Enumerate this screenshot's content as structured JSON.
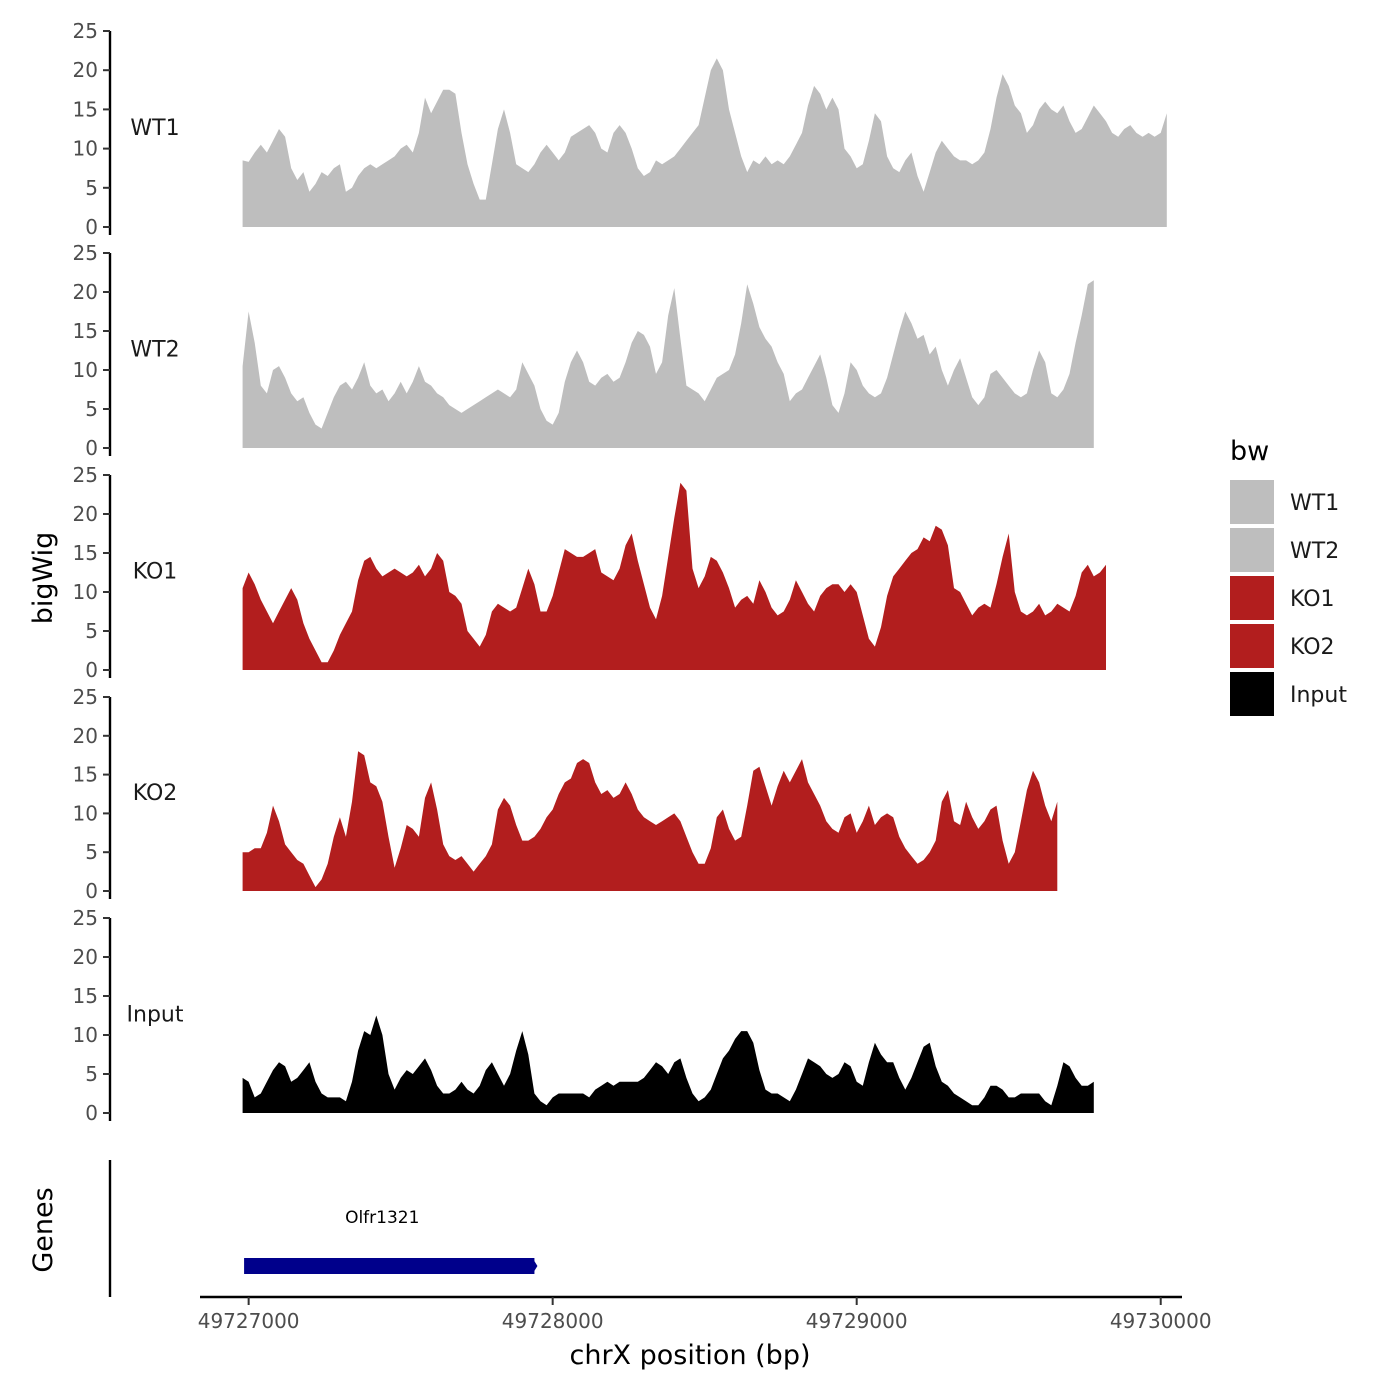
{
  "colors": {
    "WT": "#bebebe",
    "KO": "#b21e1e",
    "Input": "#000000",
    "gene": "#00008b",
    "axis": "#000000"
  },
  "chart_data": {
    "type": "area",
    "title": "",
    "ylabel": "bigWig",
    "xlabel": "chrX position (bp)",
    "ylim": [
      0,
      25
    ],
    "y_ticks": [
      "0",
      "5",
      "10",
      "15",
      "20",
      "25"
    ],
    "x_range": [
      49726840,
      49730070
    ],
    "x_ticks": [
      49727000,
      49728000,
      49729000,
      49730000
    ],
    "x_tick_labels": [
      "49727000",
      "49728000",
      "49729000",
      "49730000"
    ],
    "x_start": 49726980,
    "x_step": 20,
    "legend": {
      "title": "bw",
      "position": "right",
      "entries": [
        {
          "label": "WT1",
          "color": "#bebebe"
        },
        {
          "label": "WT2",
          "color": "#bebebe"
        },
        {
          "label": "KO1",
          "color": "#b21e1e"
        },
        {
          "label": "KO2",
          "color": "#b21e1e"
        },
        {
          "label": "Input",
          "color": "#000000"
        }
      ]
    },
    "tracks": [
      {
        "name": "WT1",
        "color": "#bebebe",
        "values": [
          8.5,
          8.3,
          9.5,
          10.5,
          9.5,
          11.0,
          12.5,
          11.5,
          7.5,
          6.0,
          7.0,
          4.5,
          5.5,
          7.0,
          6.5,
          7.5,
          8.0,
          4.5,
          5.0,
          6.5,
          7.5,
          8.0,
          7.5,
          8.0,
          8.5,
          9.0,
          10.0,
          10.5,
          9.5,
          12.0,
          16.5,
          14.5,
          16.0,
          17.5,
          17.5,
          17.0,
          12.0,
          8.0,
          5.5,
          3.5,
          3.5,
          8.0,
          12.5,
          15.0,
          12.0,
          8.0,
          7.5,
          7.0,
          8.0,
          9.5,
          10.5,
          9.5,
          8.5,
          9.5,
          11.5,
          12.0,
          12.5,
          13.0,
          12.0,
          10.0,
          9.5,
          12.0,
          13.0,
          12.0,
          10.0,
          7.5,
          6.5,
          7.0,
          8.5,
          8.0,
          8.5,
          9.0,
          10.0,
          11.0,
          12.0,
          13.0,
          16.5,
          20.0,
          21.5,
          20.0,
          15.0,
          12.0,
          9.0,
          7.0,
          8.5,
          8.0,
          9.0,
          8.0,
          8.5,
          8.0,
          9.0,
          10.5,
          12.0,
          15.5,
          18.0,
          17.0,
          15.0,
          16.5,
          15.0,
          10.0,
          9.0,
          7.5,
          8.0,
          11.0,
          14.5,
          13.5,
          9.0,
          7.5,
          7.0,
          8.5,
          9.5,
          6.5,
          4.5,
          7.0,
          9.5,
          11.0,
          10.0,
          9.0,
          8.5,
          8.5,
          8.0,
          8.5,
          9.5,
          12.5,
          16.5,
          19.5,
          18.0,
          15.5,
          14.5,
          12.0,
          13.0,
          15.0,
          16.0,
          15.0,
          14.5,
          15.5,
          13.5,
          12.0,
          12.5,
          14.0,
          15.5,
          14.5,
          13.5,
          12.0,
          11.5,
          12.5,
          13.0,
          12.0,
          11.5,
          12.0,
          11.5,
          12.0,
          14.5
        ]
      },
      {
        "name": "WT2",
        "color": "#bebebe",
        "values": [
          10.5,
          17.5,
          13.5,
          8.0,
          7.0,
          10.0,
          10.5,
          9.0,
          7.0,
          6.0,
          6.5,
          4.5,
          3.0,
          2.5,
          4.5,
          6.5,
          8.0,
          8.5,
          7.5,
          9.0,
          11.0,
          8.0,
          7.0,
          7.5,
          6.0,
          7.0,
          8.5,
          7.0,
          8.5,
          10.5,
          8.5,
          8.0,
          7.0,
          6.5,
          5.5,
          5.0,
          4.5,
          5.0,
          5.5,
          6.0,
          6.5,
          7.0,
          7.5,
          7.0,
          6.5,
          7.5,
          11.0,
          9.5,
          8.0,
          5.0,
          3.5,
          3.0,
          4.5,
          8.5,
          11.0,
          12.5,
          11.0,
          8.5,
          8.0,
          9.0,
          9.5,
          8.5,
          9.0,
          11.0,
          13.5,
          15.0,
          14.5,
          13.0,
          9.5,
          11.0,
          17.0,
          20.5,
          14.0,
          8.0,
          7.5,
          7.0,
          6.0,
          7.5,
          9.0,
          9.5,
          10.0,
          12.0,
          16.0,
          21.0,
          18.5,
          15.5,
          14.0,
          13.0,
          11.0,
          9.5,
          6.0,
          7.0,
          7.5,
          9.0,
          10.5,
          12.0,
          9.0,
          5.5,
          4.5,
          7.0,
          11.0,
          10.0,
          8.0,
          7.0,
          6.5,
          7.0,
          9.0,
          12.0,
          15.0,
          17.5,
          16.0,
          14.0,
          14.5,
          12.0,
          13.0,
          10.0,
          8.0,
          10.0,
          11.5,
          9.0,
          6.5,
          5.5,
          6.5,
          9.5,
          10.0,
          9.0,
          8.0,
          7.0,
          6.5,
          7.0,
          10.0,
          12.5,
          11.0,
          7.0,
          6.5,
          7.5,
          9.5,
          13.5,
          17.0,
          21.0,
          21.5
        ]
      },
      {
        "name": "KO1",
        "color": "#b21e1e",
        "values": [
          10.5,
          12.5,
          11.0,
          9.0,
          7.5,
          6.0,
          7.5,
          9.0,
          10.5,
          9.0,
          6.0,
          4.0,
          2.5,
          1.0,
          1.0,
          2.5,
          4.5,
          6.0,
          7.5,
          11.5,
          14.0,
          14.5,
          13.0,
          12.0,
          12.5,
          13.0,
          12.5,
          12.0,
          12.5,
          13.5,
          12.0,
          13.0,
          15.0,
          14.0,
          10.0,
          9.5,
          8.5,
          5.0,
          4.0,
          3.0,
          4.5,
          7.5,
          8.5,
          8.0,
          7.5,
          8.0,
          10.5,
          13.0,
          11.0,
          7.5,
          7.5,
          9.5,
          12.5,
          15.5,
          15.0,
          14.5,
          14.5,
          15.0,
          15.5,
          12.5,
          12.0,
          11.5,
          13.0,
          16.0,
          17.5,
          14.0,
          11.0,
          8.0,
          6.5,
          9.5,
          14.5,
          19.5,
          24.0,
          23.0,
          13.0,
          10.5,
          12.0,
          14.5,
          14.0,
          12.5,
          10.5,
          8.0,
          9.0,
          9.5,
          8.5,
          11.5,
          10.0,
          8.0,
          7.0,
          7.5,
          9.0,
          11.5,
          10.0,
          8.5,
          7.5,
          9.5,
          10.5,
          11.0,
          11.0,
          10.0,
          11.0,
          10.0,
          7.0,
          4.0,
          3.0,
          5.5,
          9.5,
          12.0,
          13.0,
          14.0,
          15.0,
          15.5,
          17.0,
          16.5,
          18.5,
          18.0,
          16.0,
          10.5,
          10.0,
          8.5,
          7.0,
          8.0,
          8.5,
          8.0,
          11.0,
          14.5,
          17.5,
          10.0,
          7.5,
          7.0,
          7.5,
          8.5,
          7.0,
          7.5,
          8.5,
          8.0,
          7.5,
          9.5,
          12.5,
          13.5,
          12.0,
          12.5,
          13.5
        ]
      },
      {
        "name": "KO2",
        "color": "#b21e1e",
        "values": [
          5.0,
          5.0,
          5.5,
          5.5,
          7.5,
          11.0,
          9.0,
          6.0,
          5.0,
          4.0,
          3.5,
          2.0,
          0.5,
          1.5,
          3.5,
          7.0,
          9.5,
          7.0,
          11.5,
          18.0,
          17.5,
          14.0,
          13.5,
          11.5,
          7.0,
          3.0,
          5.5,
          8.5,
          8.0,
          7.0,
          12.0,
          14.0,
          10.5,
          6.0,
          4.5,
          4.0,
          4.5,
          3.5,
          2.5,
          3.5,
          4.5,
          6.0,
          10.5,
          12.0,
          11.0,
          8.5,
          6.5,
          6.5,
          7.0,
          8.0,
          9.5,
          10.5,
          12.5,
          14.0,
          14.5,
          16.5,
          17.0,
          16.5,
          14.0,
          12.5,
          13.0,
          12.0,
          12.5,
          14.0,
          12.5,
          10.5,
          9.5,
          9.0,
          8.5,
          9.0,
          9.5,
          10.0,
          9.0,
          7.0,
          5.0,
          3.5,
          3.5,
          5.5,
          9.5,
          10.5,
          8.0,
          6.5,
          7.0,
          11.0,
          15.5,
          16.0,
          13.5,
          11.0,
          13.5,
          15.5,
          14.0,
          15.5,
          17.0,
          14.0,
          12.5,
          11.0,
          9.0,
          8.0,
          7.5,
          9.5,
          10.0,
          7.5,
          9.0,
          11.0,
          8.5,
          9.5,
          10.0,
          9.5,
          7.0,
          5.5,
          4.5,
          3.5,
          4.0,
          5.0,
          6.5,
          11.5,
          13.0,
          9.0,
          8.5,
          11.5,
          9.5,
          8.0,
          9.0,
          10.5,
          11.0,
          6.5,
          3.5,
          5.0,
          9.0,
          13.0,
          15.5,
          14.0,
          11.0,
          9.0,
          11.5
        ]
      },
      {
        "name": "Input",
        "color": "#000000",
        "values": [
          4.5,
          4.0,
          2.0,
          2.5,
          4.0,
          5.5,
          6.5,
          6.0,
          4.0,
          4.5,
          5.5,
          6.5,
          4.0,
          2.5,
          2.0,
          2.0,
          2.0,
          1.5,
          4.0,
          8.0,
          10.5,
          10.0,
          12.5,
          10.0,
          5.0,
          3.0,
          4.5,
          5.5,
          5.0,
          6.0,
          7.0,
          5.5,
          3.5,
          2.5,
          2.5,
          3.0,
          4.0,
          3.0,
          2.5,
          3.5,
          5.5,
          6.5,
          5.0,
          3.5,
          5.0,
          8.0,
          10.5,
          7.5,
          2.5,
          1.5,
          1.0,
          2.0,
          2.5,
          2.5,
          2.5,
          2.5,
          2.5,
          2.0,
          3.0,
          3.5,
          4.0,
          3.5,
          4.0,
          4.0,
          4.0,
          4.0,
          4.5,
          5.5,
          6.5,
          6.0,
          5.0,
          6.5,
          7.0,
          4.5,
          2.5,
          1.5,
          2.0,
          3.0,
          5.0,
          7.0,
          8.0,
          9.5,
          10.5,
          10.5,
          9.0,
          5.5,
          3.0,
          2.5,
          2.5,
          2.0,
          1.5,
          3.0,
          5.0,
          7.0,
          6.5,
          6.0,
          5.0,
          4.5,
          5.0,
          6.5,
          6.0,
          4.0,
          3.5,
          6.5,
          9.0,
          7.5,
          6.5,
          6.5,
          4.5,
          3.0,
          4.5,
          6.5,
          8.5,
          9.0,
          6.0,
          4.0,
          3.5,
          2.5,
          2.0,
          1.5,
          1.0,
          1.0,
          2.0,
          3.5,
          3.5,
          3.0,
          2.0,
          2.0,
          2.5,
          2.5,
          2.5,
          2.5,
          1.5,
          1.0,
          3.5,
          6.5,
          6.0,
          4.5,
          3.5,
          3.5,
          4.0
        ]
      }
    ],
    "genes_track": {
      "label": "Genes",
      "genes": [
        {
          "name": "Olfr1321",
          "start": 49726985,
          "end": 49727940,
          "color": "#00008b"
        }
      ]
    }
  }
}
